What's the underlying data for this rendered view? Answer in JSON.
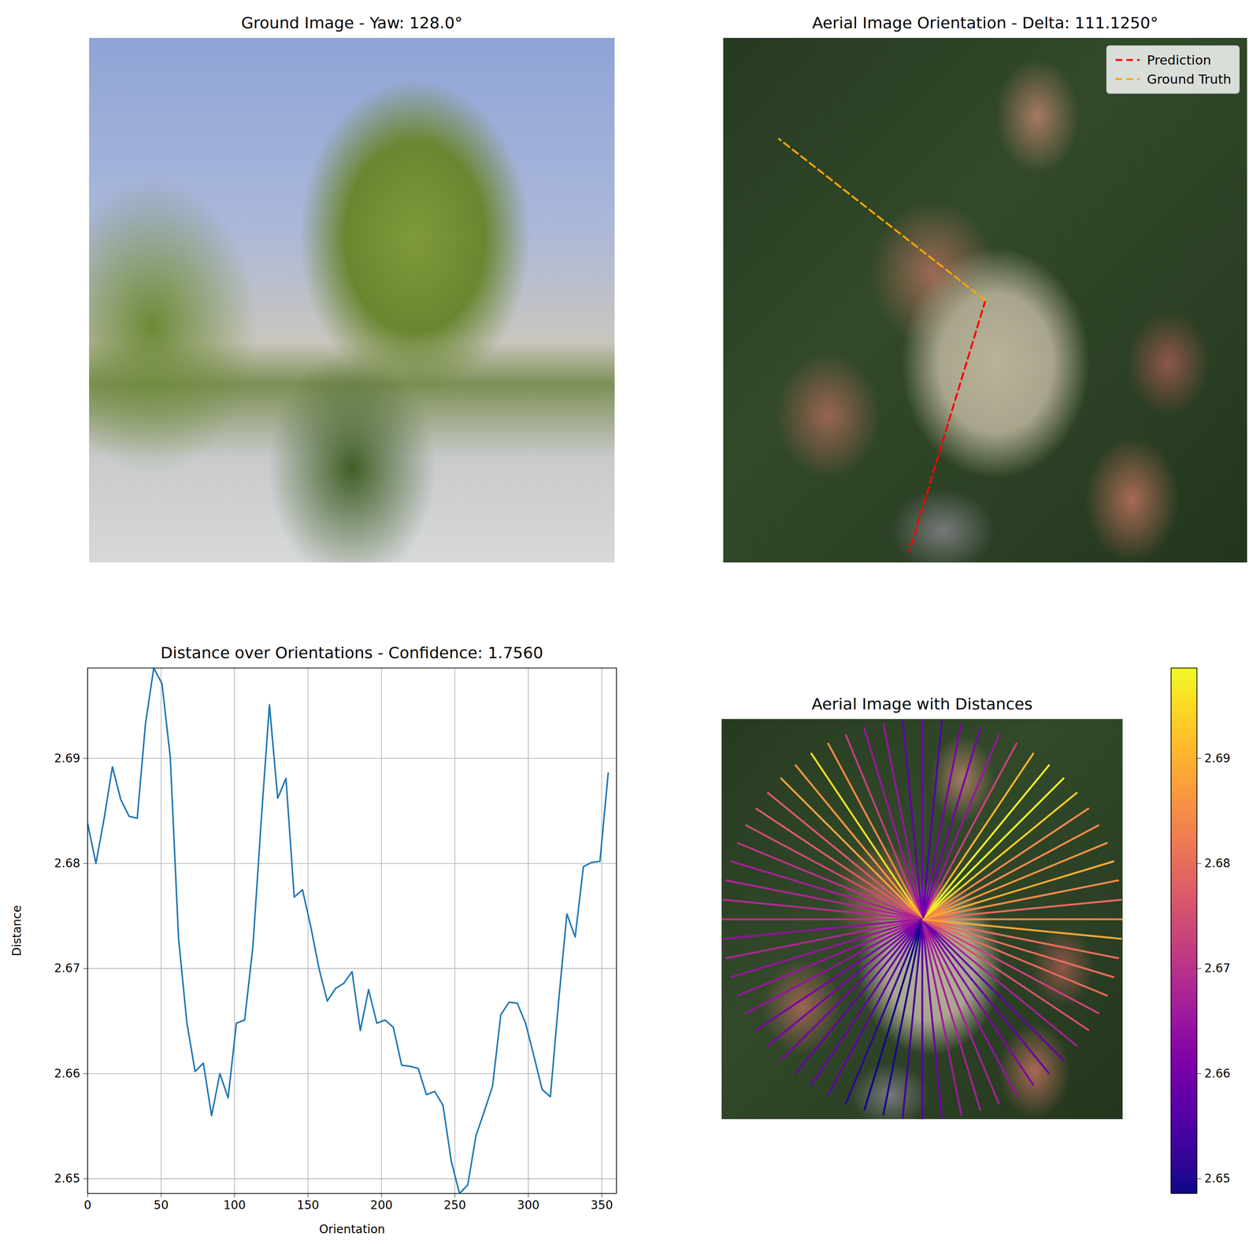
{
  "chart_data": [
    {
      "type": "image",
      "title": "Ground Image - Yaw: 128.0°",
      "tick_labels": false
    },
    {
      "type": "line",
      "title": "Aerial Image Orientation - Delta: 111.1250°",
      "xlim": [
        0,
        1
      ],
      "ylim": [
        0,
        1
      ],
      "tick_labels": false,
      "legend": "upper right",
      "series": [
        {
          "name": "Prediction",
          "color": "#ff0000",
          "line_style": "dashed",
          "x": [
            0.5,
            0.3548
          ],
          "values": [
            0.5,
            0.0215
          ]
        },
        {
          "name": "Ground Truth",
          "color": "#ffa500",
          "line_style": "dashed",
          "x": [
            0.5,
            0.106
          ],
          "values": [
            0.5,
            0.8078
          ]
        }
      ]
    },
    {
      "type": "line",
      "title": "Distance over Orientations - Confidence: 1.7560",
      "x_label": "Orientation",
      "y_label": "Distance",
      "color": "#1f77b4",
      "grid": true,
      "x": [
        0,
        5.625,
        11.25,
        16.875,
        22.5,
        28.125,
        33.75,
        39.375,
        45,
        50.625,
        56.25,
        61.875,
        67.5,
        73.125,
        78.75,
        84.375,
        90,
        95.625,
        101.25,
        106.875,
        112.5,
        118.125,
        123.75,
        129.375,
        135,
        140.625,
        146.25,
        151.875,
        157.5,
        163.125,
        168.75,
        174.375,
        180,
        185.625,
        191.25,
        196.875,
        202.5,
        208.125,
        213.75,
        219.375,
        225,
        230.625,
        236.25,
        241.875,
        247.5,
        253.125,
        258.75,
        264.375,
        270,
        275.625,
        281.25,
        286.875,
        292.5,
        298.125,
        303.75,
        309.375,
        315,
        320.625,
        326.25,
        331.875,
        337.5,
        343.125,
        348.75,
        354.375
      ],
      "values": [
        2.6838,
        2.68,
        2.6843,
        2.6892,
        2.6861,
        2.6845,
        2.6843,
        2.6933,
        2.6986,
        2.6971,
        2.6901,
        2.6729,
        2.6649,
        2.6602,
        2.661,
        2.656,
        2.66,
        2.6577,
        2.6648,
        2.6651,
        2.6721,
        2.684,
        2.6951,
        2.6862,
        2.6881,
        2.6768,
        2.6775,
        2.674,
        2.67,
        2.6669,
        2.6681,
        2.6686,
        2.6697,
        2.6641,
        2.668,
        2.6648,
        2.6651,
        2.6644,
        2.6608,
        2.6607,
        2.6605,
        2.658,
        2.6583,
        2.657,
        2.6517,
        2.6486,
        2.6494,
        2.6541,
        2.6564,
        2.6588,
        2.6656,
        2.6668,
        2.6667,
        2.6648,
        2.6617,
        2.6585,
        2.6578,
        2.6669,
        2.6752,
        2.673,
        2.6797,
        2.6801,
        2.6802,
        2.6886
      ],
      "xlim": [
        0,
        360
      ],
      "ylim": [
        2.6486,
        2.6986
      ],
      "xticks": [
        0,
        50,
        100,
        150,
        200,
        250,
        300,
        350
      ],
      "yticks": [
        2.65,
        2.66,
        2.67,
        2.68,
        2.69
      ]
    },
    {
      "type": "radial",
      "title": "Aerial Image with Distances",
      "tick_labels": false,
      "angles": [
        0,
        5.625,
        11.25,
        16.875,
        22.5,
        28.125,
        33.75,
        39.375,
        45,
        50.625,
        56.25,
        61.875,
        67.5,
        73.125,
        78.75,
        84.375,
        90,
        95.625,
        101.25,
        106.875,
        112.5,
        118.125,
        123.75,
        129.375,
        135,
        140.625,
        146.25,
        151.875,
        157.5,
        163.125,
        168.75,
        174.375,
        180,
        185.625,
        191.25,
        196.875,
        202.5,
        208.125,
        213.75,
        219.375,
        225,
        230.625,
        236.25,
        241.875,
        247.5,
        253.125,
        258.75,
        264.375,
        270,
        275.625,
        281.25,
        286.875,
        292.5,
        298.125,
        303.75,
        309.375,
        315,
        320.625,
        326.25,
        331.875,
        337.5,
        343.125,
        348.75,
        354.375
      ],
      "values": [
        2.6838,
        2.68,
        2.6843,
        2.6892,
        2.6861,
        2.6845,
        2.6843,
        2.6933,
        2.6986,
        2.6971,
        2.6901,
        2.6729,
        2.6649,
        2.6602,
        2.661,
        2.656,
        2.66,
        2.6577,
        2.6648,
        2.6651,
        2.6721,
        2.684,
        2.6951,
        2.6862,
        2.6881,
        2.6768,
        2.6775,
        2.674,
        2.67,
        2.6669,
        2.6681,
        2.6686,
        2.6697,
        2.6641,
        2.668,
        2.6648,
        2.6651,
        2.6644,
        2.6608,
        2.6607,
        2.6605,
        2.658,
        2.6583,
        2.657,
        2.6517,
        2.6486,
        2.6494,
        2.6541,
        2.6564,
        2.6588,
        2.6656,
        2.6668,
        2.6667,
        2.6648,
        2.6617,
        2.6585,
        2.6578,
        2.6669,
        2.6752,
        2.673,
        2.6797,
        2.6801,
        2.6802,
        2.6886
      ],
      "colorbar_range": [
        2.6486,
        2.6986
      ],
      "colorbar_ticks": [
        2.65,
        2.66,
        2.67,
        2.68,
        2.69
      ]
    }
  ]
}
